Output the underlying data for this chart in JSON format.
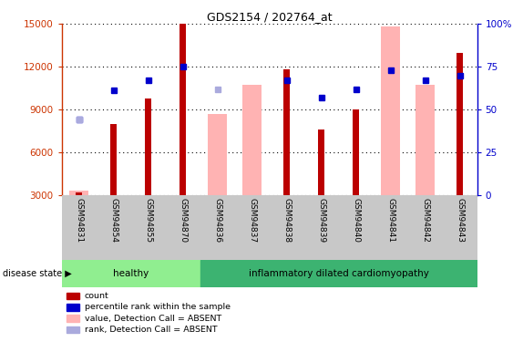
{
  "title": "GDS2154 / 202764_at",
  "samples": [
    "GSM94831",
    "GSM94854",
    "GSM94855",
    "GSM94870",
    "GSM94836",
    "GSM94837",
    "GSM94838",
    "GSM94839",
    "GSM94840",
    "GSM94841",
    "GSM94842",
    "GSM94843"
  ],
  "healthy_count": 4,
  "groups": [
    "healthy",
    "inflammatory dilated cardiomyopathy"
  ],
  "count_values": [
    3200,
    8000,
    9800,
    15000,
    null,
    null,
    11800,
    7600,
    9000,
    null,
    null,
    13000
  ],
  "absent_value_bars": [
    3300,
    null,
    null,
    null,
    8700,
    10700,
    null,
    null,
    null,
    14800,
    10700,
    null
  ],
  "percentile_rank": [
    44,
    61,
    67,
    75,
    null,
    null,
    67,
    57,
    62,
    73,
    67,
    70
  ],
  "absent_rank": [
    44,
    null,
    null,
    null,
    62,
    null,
    null,
    null,
    null,
    null,
    null,
    null
  ],
  "ylim_left": [
    3000,
    15000
  ],
  "ylim_right": [
    0,
    100
  ],
  "yticks_left": [
    3000,
    6000,
    9000,
    12000,
    15000
  ],
  "yticks_right": [
    0,
    25,
    50,
    75,
    100
  ],
  "yticklabels_right": [
    "0",
    "25",
    "50",
    "75",
    "100%"
  ],
  "count_color": "#BB0000",
  "absent_val_color": "#FFB3B3",
  "rank_color": "#0000CC",
  "absent_rank_color": "#AAAADD",
  "grid_color": "#000000",
  "xlabel_area_color": "#C8C8C8",
  "healthy_color": "#90EE90",
  "disease_color": "#3CB371",
  "legend_items": [
    {
      "label": "count",
      "color": "#BB0000"
    },
    {
      "label": "percentile rank within the sample",
      "color": "#0000CC"
    },
    {
      "label": "value, Detection Call = ABSENT",
      "color": "#FFB3B3"
    },
    {
      "label": "rank, Detection Call = ABSENT",
      "color": "#AAAADD"
    }
  ]
}
